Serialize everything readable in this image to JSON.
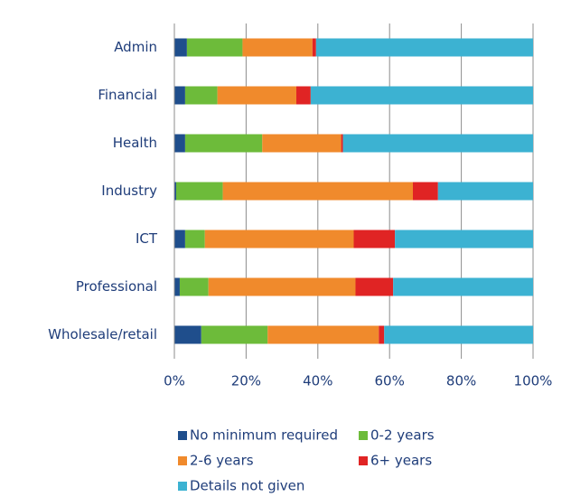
{
  "chart_data": {
    "type": "stacked_bar_horizontal",
    "categories": [
      "Admin",
      "Financial",
      "Health",
      "Industry",
      "ICT",
      "Professional",
      "Wholesale/retail"
    ],
    "series": [
      {
        "name": "No minimum required",
        "color": "#1f4e8c",
        "values": [
          3.5,
          3,
          3,
          0.5,
          3,
          1.5,
          7.5
        ]
      },
      {
        "name": "0-2 years",
        "color": "#6dbb3a",
        "values": [
          15.5,
          9,
          21.5,
          13,
          5.5,
          8,
          18.5
        ]
      },
      {
        "name": "2-6 years",
        "color": "#f08a2c",
        "values": [
          19.5,
          22,
          22,
          53,
          41.5,
          41,
          31
        ]
      },
      {
        "name": "6+ years",
        "color": "#e02424",
        "values": [
          1,
          4,
          0.5,
          7,
          11.5,
          10.5,
          1.5
        ]
      },
      {
        "name": "Details not given",
        "color": "#3cb2d2",
        "values": [
          60.5,
          62,
          53,
          26.5,
          38.5,
          39,
          41.5
        ]
      }
    ],
    "xlim": [
      0,
      100
    ],
    "xticks": [
      {
        "value": 0,
        "label": "0%"
      },
      {
        "value": 20,
        "label": "20%"
      },
      {
        "value": 40,
        "label": "40%"
      },
      {
        "value": 60,
        "label": "60%"
      },
      {
        "value": 80,
        "label": "80%"
      },
      {
        "value": 100,
        "label": "100%"
      }
    ],
    "grid": true
  }
}
